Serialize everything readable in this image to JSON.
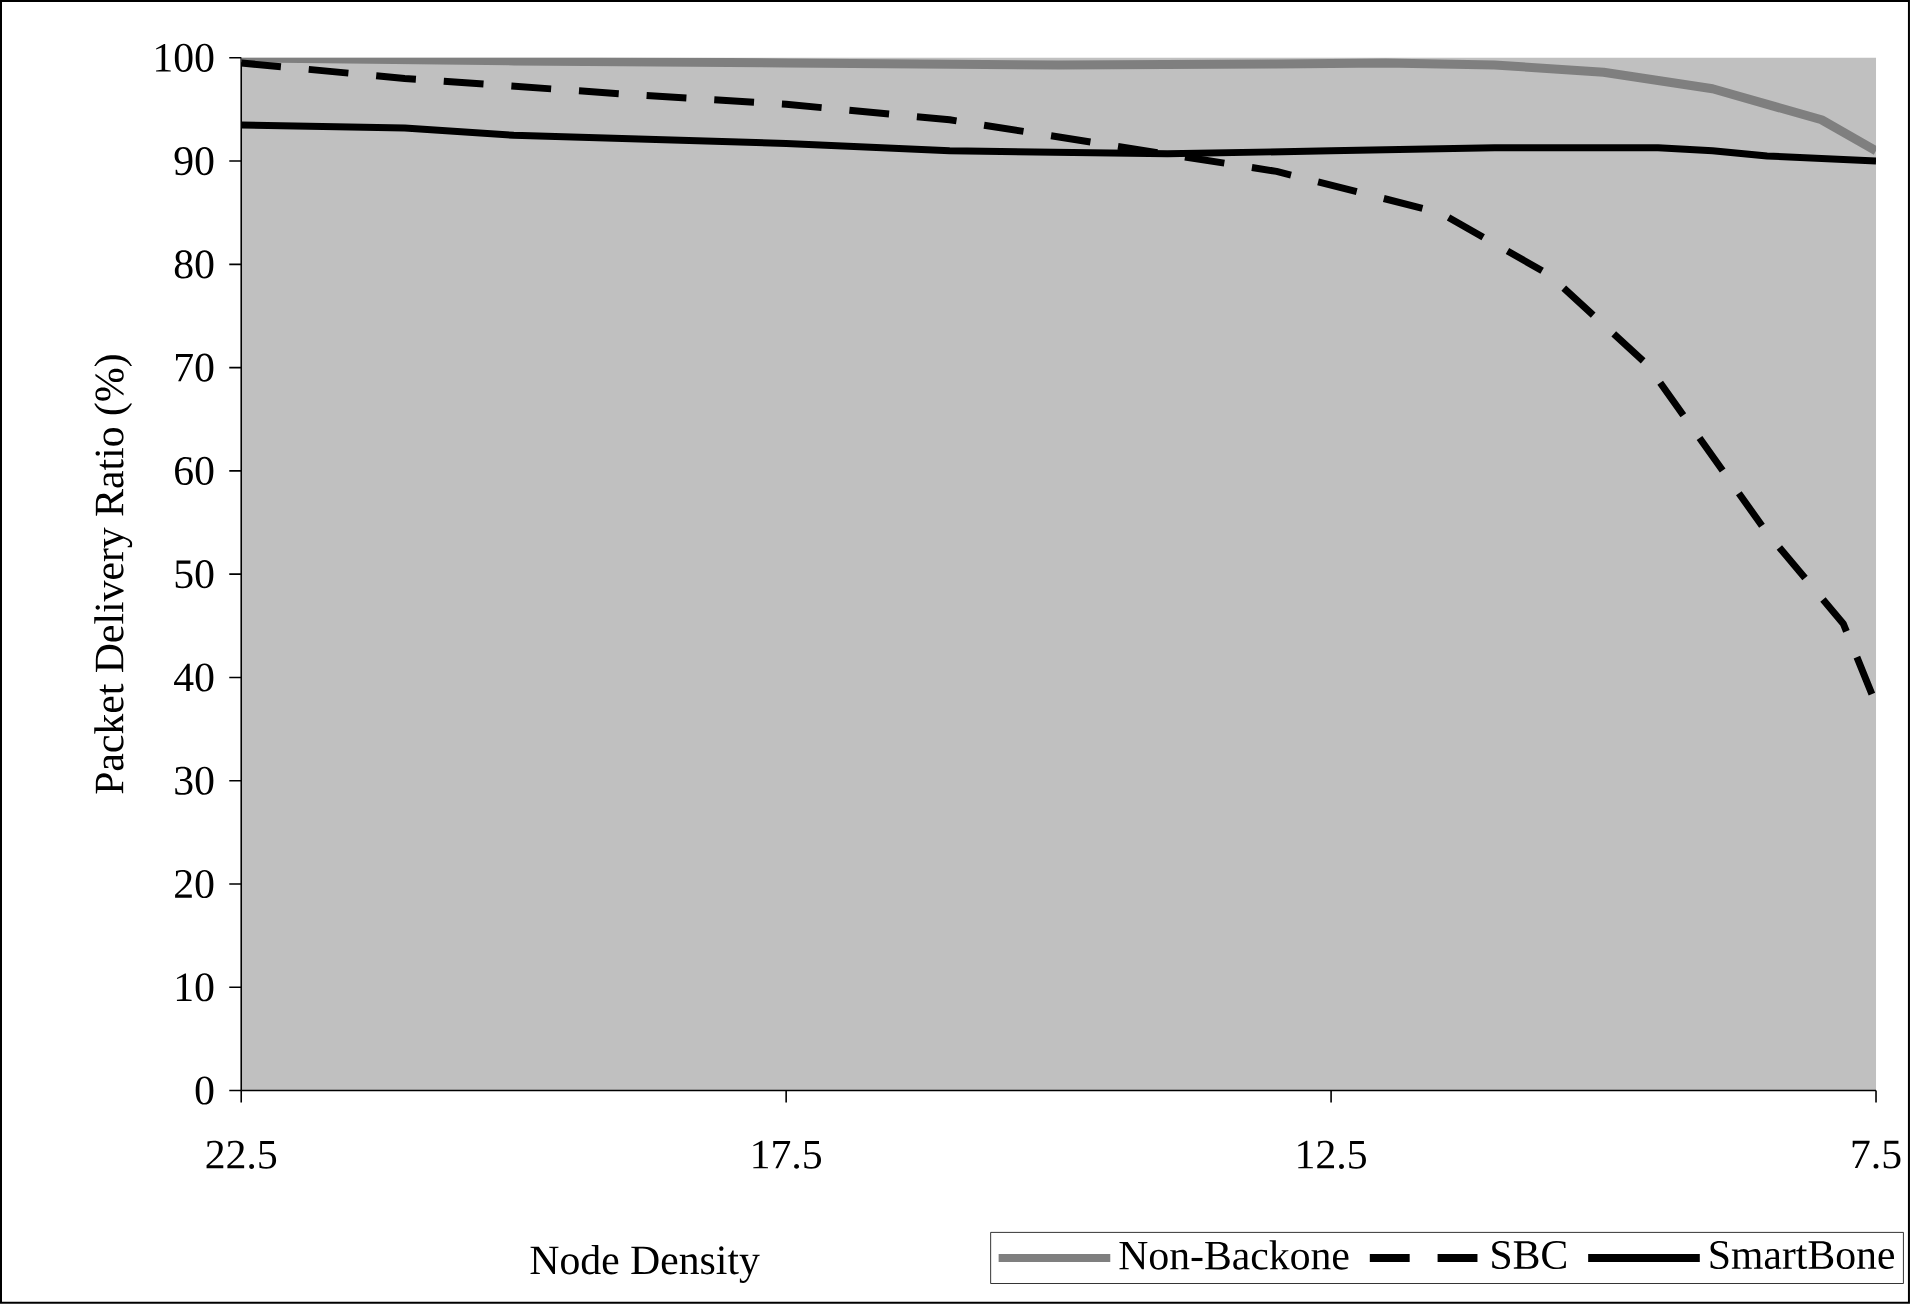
{
  "chart_data": {
    "type": "line",
    "xlabel": "Node Density",
    "ylabel": "Packet Delivery Ratio (%)",
    "xlim": [
      22.5,
      7.5
    ],
    "xticks": [
      22.5,
      17.5,
      12.5,
      7.5
    ],
    "ylim": [
      0,
      100
    ],
    "yticks": [
      0,
      10,
      20,
      30,
      40,
      50,
      60,
      70,
      80,
      90,
      100
    ],
    "grid": false,
    "legend": "bottom",
    "marker": "none",
    "series": [
      {
        "name": "Non-Backone",
        "color": "#7f7f7f",
        "line_style": "solid",
        "x": [
          22.5,
          20,
          17.5,
          15,
          13,
          12,
          11,
          10,
          9,
          8.5,
          8,
          7.5
        ],
        "values": [
          100,
          99.7,
          99.5,
          99.3,
          99.4,
          99.5,
          99.3,
          98.6,
          97,
          95.5,
          94,
          91
        ]
      },
      {
        "name": "SBC",
        "color": "#000000",
        "line_style": "dashed",
        "x": [
          22.5,
          21,
          19,
          17.5,
          16,
          14.5,
          13,
          11.5,
          10.5,
          9.6,
          8.5,
          7.8,
          7.5
        ],
        "values": [
          99.5,
          98,
          96.5,
          95.5,
          94,
          91.5,
          89,
          85,
          79,
          70.3,
          54,
          45.2,
          37.4
        ]
      },
      {
        "name": "SmartBone",
        "color": "#000000",
        "line_style": "solid",
        "x": [
          22.5,
          21,
          20,
          17.5,
          16,
          14,
          12.5,
          11,
          9.5,
          9,
          8.5,
          7.5
        ],
        "values": [
          93.5,
          93.2,
          92.5,
          91.7,
          91,
          90.7,
          91,
          91.3,
          91.3,
          91,
          90.5,
          90
        ]
      }
    ]
  }
}
